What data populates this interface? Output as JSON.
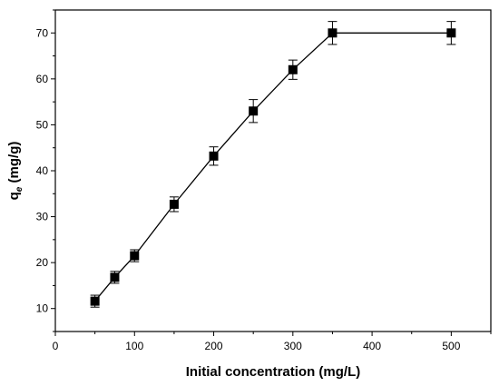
{
  "chart_data": {
    "type": "line",
    "title": "",
    "xlabel": "Initial concentration (mg/L)",
    "ylabel": {
      "base": "q",
      "subscript": "e",
      "rest": " (mg/g)"
    },
    "xlim": [
      0,
      550
    ],
    "ylim": [
      5,
      75
    ],
    "x_ticks": [
      0,
      100,
      200,
      300,
      400,
      500
    ],
    "y_ticks": [
      10,
      20,
      30,
      40,
      50,
      60,
      70
    ],
    "x_minor_step": 50,
    "y_minor_step": 5,
    "grid": false,
    "legend": "none",
    "marker": "square",
    "color": "#000000",
    "series": [
      {
        "x": [
          50,
          75,
          100,
          150,
          200,
          250,
          300,
          350,
          500
        ],
        "y": [
          11.6,
          16.8,
          21.5,
          32.7,
          43.2,
          53.0,
          62.0,
          70.0,
          70.0
        ],
        "error": [
          1.3,
          1.3,
          1.3,
          1.6,
          2.0,
          2.5,
          2.1,
          2.5,
          2.5
        ]
      }
    ]
  }
}
